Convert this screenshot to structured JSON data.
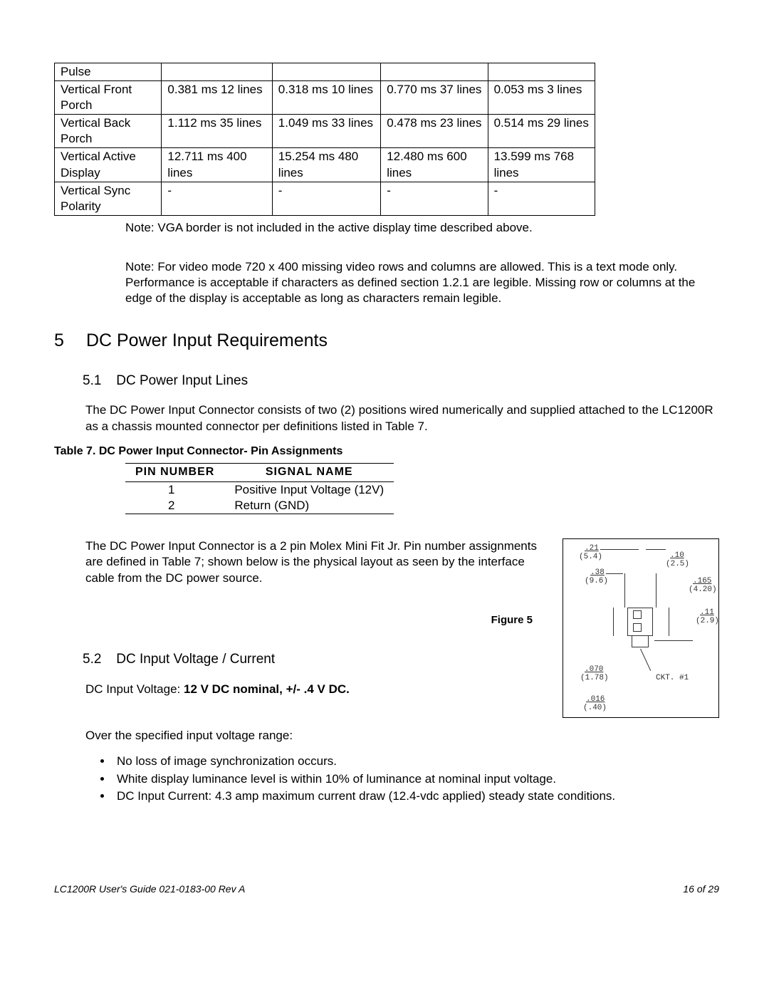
{
  "timing_table": {
    "rows": [
      {
        "label": "Pulse",
        "c1": "",
        "c2": "",
        "c3": "",
        "c4": ""
      },
      {
        "label": "Vertical Front Porch",
        "c1": "0.381 ms 12 lines",
        "c2": "0.318 ms 10 lines",
        "c3": "0.770 ms 37 lines",
        "c4": "0.053 ms 3 lines"
      },
      {
        "label": "Vertical Back Porch",
        "c1": "1.112 ms 35 lines",
        "c2": "1.049 ms 33 lines",
        "c3": "0.478 ms 23 lines",
        "c4": "0.514 ms 29 lines"
      },
      {
        "label": "Vertical Active Display",
        "c1": "12.711 ms 400 lines",
        "c2": "15.254 ms 480 lines",
        "c3": "12.480 ms 600 lines",
        "c4": "13.599 ms 768 lines"
      },
      {
        "label": "Vertical Sync Polarity",
        "c1": "-",
        "c2": "-",
        "c3": "-",
        "c4": "-"
      }
    ]
  },
  "note1": "Note: VGA border is not included in the active display time described above.",
  "note2": "Note: For video mode 720 x 400 missing video rows and columns are allowed. This is a text mode only.  Performance is acceptable if characters as defined section 1.2.1 are legible.  Missing row or columns at the edge of the display is acceptable as long as characters remain legible.",
  "section5": {
    "num": "5",
    "title": "DC Power Input Requirements"
  },
  "section51": {
    "num": "5.1",
    "title": "DC Power Input Lines"
  },
  "p51": "The DC Power Input Connector consists of two (2) positions wired numerically and supplied attached to the LC1200R as a chassis mounted connector per definitions listed in Table 7.",
  "table7_caption": "Table 7. DC Power Input Connector- Pin Assignments",
  "table7": {
    "headers": [
      "PIN  NUMBER",
      "SIGNAL  NAME"
    ],
    "rows": [
      {
        "pin": "1",
        "signal": "Positive Input Voltage (12V)"
      },
      {
        "pin": "2",
        "signal": "Return (GND)"
      }
    ]
  },
  "p51b": "The DC Power Input Connector is a 2 pin Molex Mini Fit Jr. Pin number assignments are defined in Table 7; shown below is the physical layout as seen by the interface cable from the DC power source.",
  "fig5_caption": "Figure 5",
  "fig5_dims": {
    "d1a": ".21",
    "d1b": "(5.4)",
    "d2a": ".38",
    "d2b": "(9.6)",
    "d3a": ".10",
    "d3b": "(2.5)",
    "d4a": ".165",
    "d4b": "(4.20)",
    "d5a": ".11",
    "d5b": "(2.9)",
    "d6a": ".070",
    "d6b": "(1.78)",
    "d7a": ".016",
    "d7b": "(.40)",
    "ckt": "CKT. #1"
  },
  "section52": {
    "num": "5.2",
    "title": "DC Input Voltage / Current"
  },
  "p52_label": "DC Input Voltage: ",
  "p52_value": "12  V DC  nominal, +/- .4  V DC.",
  "p52b": "Over the specified input voltage range:",
  "bullets": [
    "No loss of image synchronization occurs.",
    "White display luminance level is within 10% of luminance at nominal input voltage.",
    "DC Input Current: 4.3 amp maximum current draw (12.4-vdc applied) steady state conditions."
  ],
  "footer": {
    "left": "LC1200R User's Guide    021-0183-00 Rev A",
    "right": "16 of  29"
  }
}
